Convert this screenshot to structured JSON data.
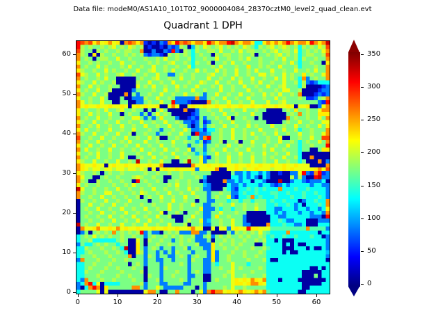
{
  "header": {
    "data_file_label": "Data file: modeM0/AS1A10_101T02_9000004084_28370cztM0_level2_quad_clean.evt"
  },
  "title": "Quadrant 1 DPH",
  "axes": {
    "x_ticks": [
      0,
      10,
      20,
      30,
      40,
      50,
      60
    ],
    "y_ticks": [
      0,
      10,
      20,
      30,
      40,
      50,
      60
    ]
  },
  "colorbar": {
    "ticks": [
      0,
      50,
      100,
      150,
      200,
      250,
      300,
      350
    ],
    "colormap": "jet",
    "extend": "both",
    "top_arrow_color": "#8b0000",
    "bottom_arrow_color": "#000083"
  },
  "chart_data": {
    "type": "heatmap",
    "title": "Quadrant 1 DPH",
    "annotation": "Data file: modeM0/AS1A10_101T02_9000004084_28370cztM0_level2_quad_clean.evt",
    "x_range": [
      0,
      63
    ],
    "y_range": [
      0,
      63
    ],
    "value_range": [
      -5,
      358
    ],
    "colorbar_tick_values": [
      0,
      50,
      100,
      150,
      200,
      250,
      300,
      350
    ],
    "legend_position": "right-colorbar",
    "grid": false,
    "level_values": {
      "0": 8,
      "1": 55,
      "2": 85,
      "3": 110,
      "4": 135,
      "5": 160,
      "6": 175,
      "7": 195,
      "8": 215,
      "9": 228,
      "a": 262,
      "b": 288,
      "c": 312,
      "d": 332,
      "e": 350
    },
    "rows_top_to_bottom_y63_to_y0": [
      "cbab9a89a890aba9a101021a9caba9aa9ca9aacda9aa9449a9a9aca9aa9ca9ad",
      "c76766767867687670100102127603768767867676876476786787674767687b",
      "b766076766767766a0020021c20764766776866768677667678677684676768a",
      "a76090766766767672122107676764676607677667667066767867674677667b",
      "a676067766866766676676866766746676686676676866766676866747667 66a",
      "96676766766866766676766786676476670667686676667667667686466766 09",
      "a67668676667686676686676676684666676866676696676766866674666766a",
      "97667668676676686678667686676686766867668667686668667668667686 6a",
      "b87668676678667667668662267667666786676686676688676686766967668a",
      "a67667686600000676678667668667666866766867668667668686764a26766a",
      "97668676670000076686676686667668766866766866768667668667472 12444",
      "a66867667660000867686676686766866676866766866766866786664700 0012",
      "967668667000002666676686676668667666866766686676667688667000 0122",
      "a76686670000a0626676686676686676266866766866766867686676a0001212",
      "966766860006002227668667622222a2267668667668666766867666761 1267a",
      "a867668660066002267668 66c22210000a676686676686668667866666666 21c",
      "a89889889889808989889008a80089889889889889889889889889808890 028a",
      "96766768667866766060686000 0a00266766866766866766000067696676 68a",
      "96686766866067662616867600000126667668667666866000000676a676699",
      "a6766866766766886262696662001216266766806676606000000a676676 686a",
      "97668667668667668667668667622126126676686667666600006766866766 88",
      "a66768667668667668667668667620262676686676686766686676686676 6869",
      "968667668667668666766266766862231446766866766686667686674667 666a",
      "a766866766866706676626676686 60c22366766866768667668667668667668a",
      "b66766866766866766867006676636 62ac667668667667667668006676686 6b",
      "a6766866766768666866766686676636126670667066866676686676467668 6a",
      "9668667668667668667668667666266726676686676676686676686646676 66c",
      "a686676686676676866766866766826626766866766866676866766646600699",
      "96676866766866676686676686676636366866766866766866766866400000 00",
      "a676686676686006766866766866766821676686676686676766866740 0a0000",
      "976686676686676d667668660067d66826676686676686676686676646000a02",
      "a98898808988988988988a0000000a88898898889889889889889889888000 0a",
      "a98788788788788787080898898889288 88a008898788988878898988 8889a8b",
      "976676067667666667667667667667666600000622424424200100228c21ac12",
      "a86600676676667876676600667666763000000442424204200000 727200cd22",
      "a76007667667660c676676066766766020000a2242440442000d00244212 2240",
      "96766766676676866676666768667666320000422424442442124244444244 22",
      "d86676676686676676686676676686762200064214454545444a44454454 4442",
      "a766766886676676876676686676686662667662245445444554454445445442",
      "a66766866766766706766866766866766267668214 45a4544454445445444542",
      "07667668667668666606676686676606622666466466466645445444024454 4a",
      "06686676686676667667666866766866226676686676676644544542404445 4a",
      "0676686676686676686676686676666822264664667668664422444244244249",
      "0667668667668667667668066760667622668666766000004424244424424 42a",
      "06766766866766866766866700066866226966766620000004422444444222 0c",
      "0667667668667668668667666006766823667668662000000445422444000222",
      "d676686676686676686676686667066722667668662200 00a444544224000444",
      "0a889a8898a898898889889889889a8800808828988c99888555555555a55552",
      "026067676a676767c262206767222aa2260000627676768654444a4444444044",
      "4676867676676676626766767676672267267676676766764544544544454402",
      "4667444444676008607667662676762226066767667667674404000444444442",
      "2644676766466009606676676676667222967667676660064444040400444442",
      "447666766764d00962676266266726662296676676667667544400044404 0042",
      "4467666766764009726626262766626662926667667666764444040044444443",
      "4666766676666a0662762662267626766292667666766766444444444444 4442",
      "2a6667666766766662662266266627662292667666676667400444444444 4440",
      "4466766676666067626662666676266622646668666466664444444444444444",
      "44676667667666766066627666662666226676686766667644444444444 00404",
      "4476667666676666706662666766267622666678666676664444444440000044",
      "44666766667667666076626676662266006667686676666744444444400 06044",
      "42a666766766667660667266667626660067666898 98a98a4440444400000004",
      "24ac4804444666667266622666622666266666689989aa984444444440000044",
      "204aca09666666aa62668622222666062666676866766666444444444004 4444",
      "466668080000000008aa60066a6660682acaa8989a989a9a5444444400444444"
    ]
  }
}
